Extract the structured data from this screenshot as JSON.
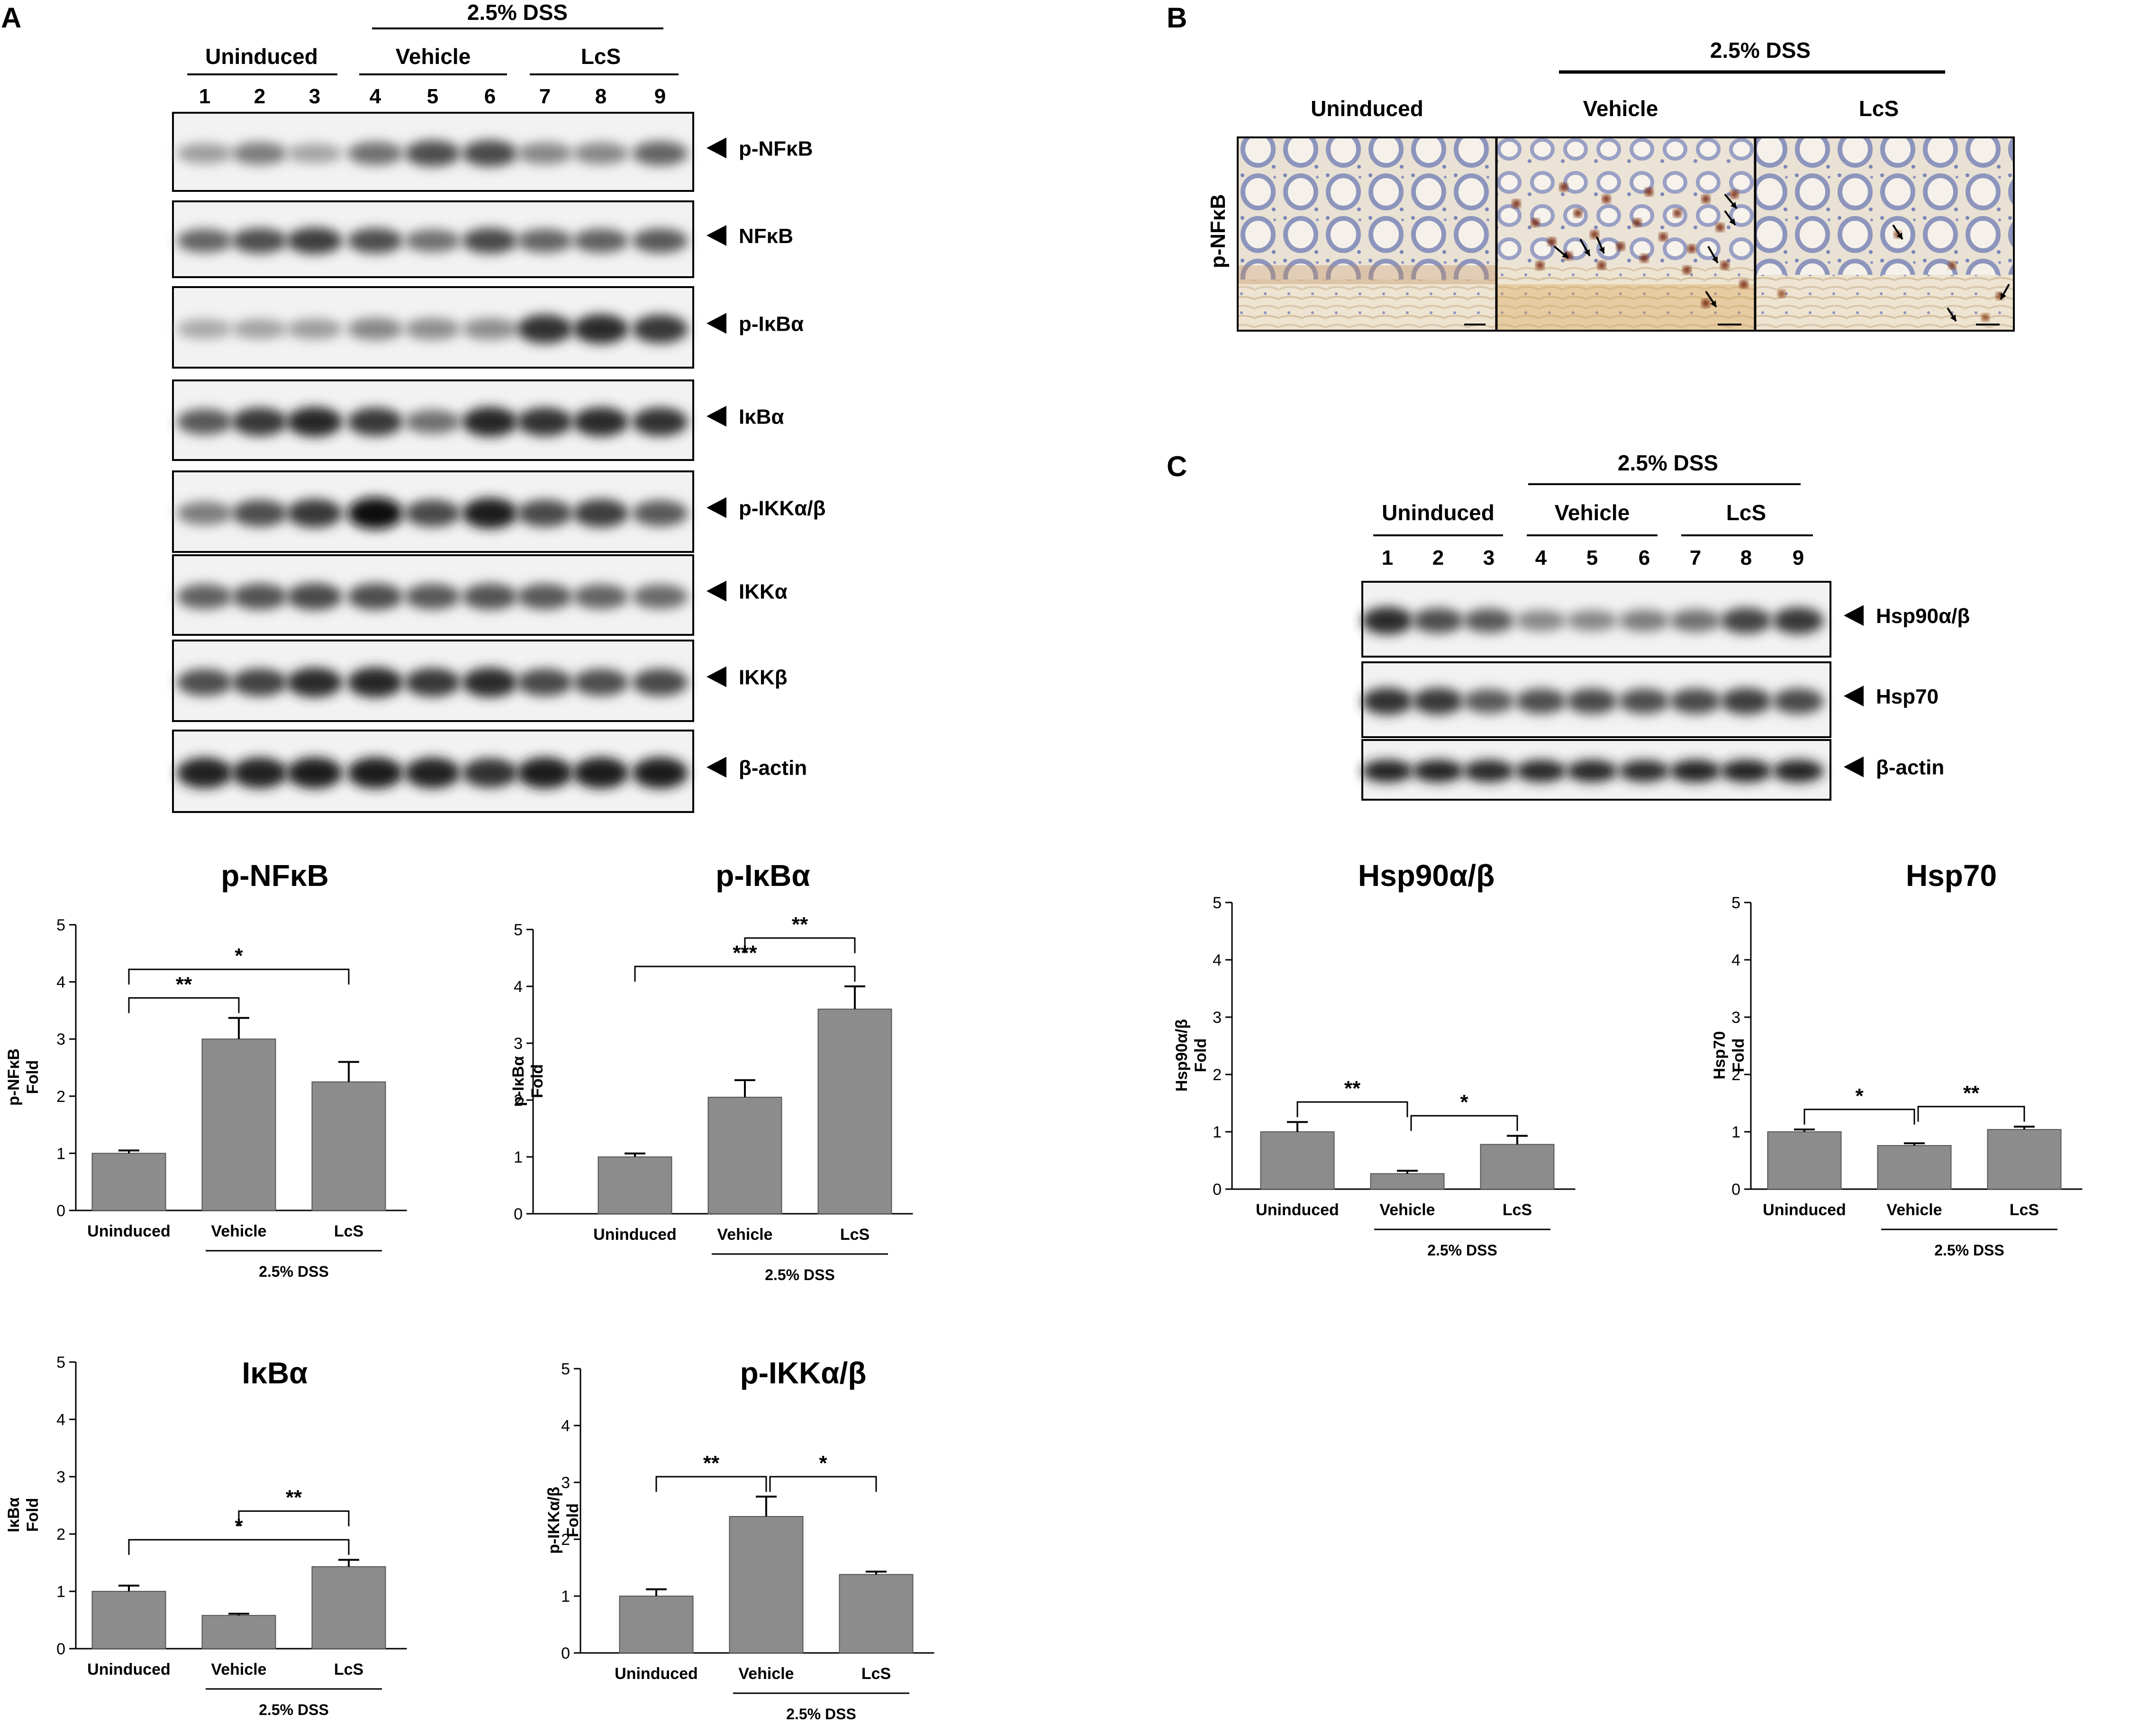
{
  "panels": {
    "A": {
      "letter": "A",
      "dss_header": "2.5% DSS",
      "groups": [
        "Uninduced",
        "Vehicle",
        "LcS"
      ],
      "lanes": [
        "1",
        "2",
        "3",
        "4",
        "5",
        "6",
        "7",
        "8",
        "9"
      ],
      "blots": [
        {
          "label": "p-NFκB",
          "intensity": [
            0.35,
            0.5,
            0.32,
            0.55,
            0.7,
            0.72,
            0.45,
            0.45,
            0.6
          ]
        },
        {
          "label": "NFκB",
          "intensity": [
            0.6,
            0.7,
            0.78,
            0.7,
            0.55,
            0.72,
            0.6,
            0.62,
            0.65
          ]
        },
        {
          "label": "p-IκBα",
          "intensity": [
            0.3,
            0.32,
            0.35,
            0.45,
            0.42,
            0.42,
            0.82,
            0.85,
            0.8
          ]
        },
        {
          "label": "IκBα",
          "intensity": [
            0.65,
            0.8,
            0.88,
            0.8,
            0.55,
            0.88,
            0.82,
            0.85,
            0.82
          ]
        },
        {
          "label": "p-IKKα/β",
          "intensity": [
            0.5,
            0.7,
            0.8,
            0.98,
            0.72,
            0.92,
            0.72,
            0.78,
            0.65
          ]
        },
        {
          "label": "IKKα",
          "intensity": [
            0.62,
            0.68,
            0.72,
            0.7,
            0.65,
            0.68,
            0.65,
            0.6,
            0.58
          ]
        },
        {
          "label": "IKKβ",
          "intensity": [
            0.7,
            0.75,
            0.85,
            0.88,
            0.8,
            0.85,
            0.72,
            0.7,
            0.72
          ]
        },
        {
          "label": "β-actin",
          "intensity": [
            0.9,
            0.9,
            0.92,
            0.92,
            0.9,
            0.82,
            0.92,
            0.92,
            0.92
          ]
        }
      ]
    },
    "B": {
      "letter": "B",
      "dss_header": "2.5% DSS",
      "groups": [
        "Uninduced",
        "Vehicle",
        "LcS"
      ],
      "row_label": "p-NFκB"
    },
    "C": {
      "letter": "C",
      "dss_header": "2.5% DSS",
      "groups": [
        "Uninduced",
        "Vehicle",
        "LcS"
      ],
      "lanes": [
        "1",
        "2",
        "3",
        "4",
        "5",
        "6",
        "7",
        "8",
        "9"
      ],
      "blots": [
        {
          "label": "Hsp90α/β",
          "intensity": [
            0.85,
            0.7,
            0.65,
            0.45,
            0.45,
            0.5,
            0.55,
            0.75,
            0.8
          ]
        },
        {
          "label": "Hsp70",
          "intensity": [
            0.82,
            0.8,
            0.65,
            0.7,
            0.72,
            0.7,
            0.72,
            0.78,
            0.72
          ]
        },
        {
          "label": "β-actin",
          "intensity": [
            0.9,
            0.9,
            0.88,
            0.88,
            0.88,
            0.85,
            0.9,
            0.9,
            0.9
          ]
        }
      ]
    }
  },
  "chart_data": [
    {
      "type": "bar",
      "title": "p-NFκB",
      "ylabel_line1": "p-NFκB",
      "ylabel_line2": "Fold",
      "categories": [
        "Uninduced",
        "Vehicle",
        "LcS"
      ],
      "values": [
        1.0,
        3.0,
        2.25
      ],
      "errors": [
        0.05,
        0.37,
        0.35
      ],
      "ylim": [
        0,
        5
      ],
      "yticks": [
        0,
        1,
        2,
        3,
        4,
        5
      ],
      "group_label": "2.5% DSS",
      "comparisons": [
        {
          "from": 0,
          "to": 1,
          "label": "**"
        },
        {
          "from": 0,
          "to": 2,
          "label": "*"
        }
      ]
    },
    {
      "type": "bar",
      "title": "p-IκBα",
      "ylabel_line1": "p-IκBα",
      "ylabel_line2": "Fold",
      "categories": [
        "Uninduced",
        "Vehicle",
        "LcS"
      ],
      "values": [
        1.0,
        2.05,
        3.6
      ],
      "errors": [
        0.06,
        0.3,
        0.4
      ],
      "ylim": [
        0,
        5
      ],
      "yticks": [
        0,
        1,
        2,
        3,
        4,
        5
      ],
      "group_label": "2.5% DSS",
      "comparisons": [
        {
          "from": 0,
          "to": 2,
          "label": "***"
        },
        {
          "from": 1,
          "to": 2,
          "label": "**"
        }
      ]
    },
    {
      "type": "bar",
      "title": "IκBα",
      "ylabel_line1": "IκBα",
      "ylabel_line2": "Fold",
      "categories": [
        "Uninduced",
        "Vehicle",
        "LcS"
      ],
      "values": [
        1.0,
        0.58,
        1.43
      ],
      "errors": [
        0.1,
        0.03,
        0.12
      ],
      "ylim": [
        0,
        5
      ],
      "yticks": [
        0,
        1,
        2,
        3,
        4,
        5
      ],
      "group_label": "2.5% DSS",
      "comparisons": [
        {
          "from": 0,
          "to": 2,
          "label": "*"
        },
        {
          "from": 1,
          "to": 2,
          "label": "**"
        }
      ]
    },
    {
      "type": "bar",
      "title": "p-IKKα/β",
      "ylabel_line1": "p-IKKα/β",
      "ylabel_line2": "Fold",
      "categories": [
        "Uninduced",
        "Vehicle",
        "LcS"
      ],
      "values": [
        1.0,
        2.4,
        1.38
      ],
      "errors": [
        0.12,
        0.35,
        0.05
      ],
      "ylim": [
        0,
        5
      ],
      "yticks": [
        0,
        1,
        2,
        3,
        4,
        5
      ],
      "group_label": "2.5% DSS",
      "comparisons": [
        {
          "from": 0,
          "to": 1,
          "label": "**"
        },
        {
          "from": 1,
          "to": 2,
          "label": "*"
        }
      ]
    },
    {
      "type": "bar",
      "title": "Hsp90α/β",
      "ylabel_line1": "Hsp90α/β",
      "ylabel_line2": "Fold",
      "categories": [
        "Uninduced",
        "Vehicle",
        "LcS"
      ],
      "values": [
        1.0,
        0.27,
        0.78
      ],
      "errors": [
        0.17,
        0.05,
        0.15
      ],
      "ylim": [
        0,
        5
      ],
      "yticks": [
        0,
        1,
        2,
        3,
        4,
        5
      ],
      "group_label": "2.5% DSS",
      "comparisons": [
        {
          "from": 0,
          "to": 1,
          "label": "**"
        },
        {
          "from": 1,
          "to": 2,
          "label": "*"
        }
      ]
    },
    {
      "type": "bar",
      "title": "Hsp70",
      "ylabel_line1": "Hsp70",
      "ylabel_line2": "Fold",
      "categories": [
        "Uninduced",
        "Vehicle",
        "LcS"
      ],
      "values": [
        1.0,
        0.76,
        1.04
      ],
      "errors": [
        0.04,
        0.04,
        0.05
      ],
      "ylim": [
        0,
        5
      ],
      "yticks": [
        0,
        1,
        2,
        3,
        4,
        5
      ],
      "group_label": "2.5% DSS",
      "comparisons": [
        {
          "from": 0,
          "to": 1,
          "label": "*"
        },
        {
          "from": 1,
          "to": 2,
          "label": "**"
        }
      ]
    }
  ]
}
